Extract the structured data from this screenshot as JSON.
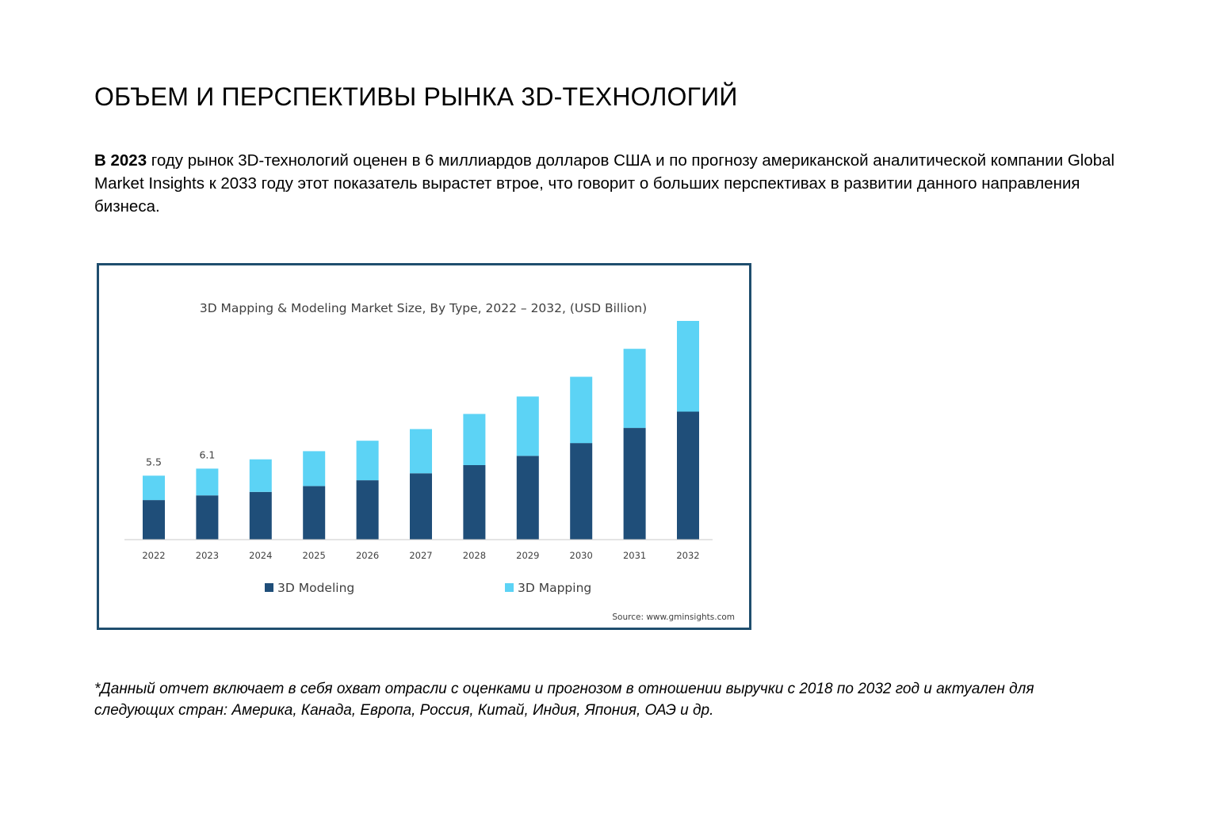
{
  "document": {
    "title": "ОБЪЕМ И ПЕРСПЕКТИВЫ РЫНКА 3D-ТЕХНОЛОГИЙ",
    "intro_bold": "В 2023",
    "intro_text": " году рынок 3D-технологий оценен в 6 миллиардов долларов США и по прогнозу американской аналитической компании Global Market Insights к 2033 году этот показатель вырастет втрое, что говорит о больших перспективах в развитии данного направления бизнеса.",
    "footnote": "*Данный отчет включает в себя охват отрасли с оценками и прогнозом в отношении выручки с 2018 по 2032 год и актуален для следующих стран: Америка, Канада, Европа, Россия, Китай, Индия, Япония, ОАЭ и др."
  },
  "chart_data": {
    "type": "bar",
    "stacked": true,
    "title": "3D Mapping & Modeling Market Size, By Type, 2022 – 2032, (USD Billion)",
    "categories": [
      "2022",
      "2023",
      "2024",
      "2025",
      "2026",
      "2027",
      "2028",
      "2029",
      "2030",
      "2031",
      "2032"
    ],
    "series": [
      {
        "name": "3D Modeling",
        "color": "#1f4e79",
        "values": [
          3.4,
          3.8,
          4.1,
          4.6,
          5.1,
          5.7,
          6.4,
          7.2,
          8.3,
          9.6,
          11.0
        ]
      },
      {
        "name": "3D Mapping",
        "color": "#5cd3f5",
        "values": [
          2.1,
          2.3,
          2.8,
          3.0,
          3.4,
          3.8,
          4.4,
          5.1,
          5.7,
          6.8,
          7.8
        ]
      }
    ],
    "data_labels": [
      {
        "category": "2022",
        "text": "5.5"
      },
      {
        "category": "2023",
        "text": "6.1"
      }
    ],
    "xlabel": "",
    "ylabel": "",
    "ylim": [
      0,
      18.8
    ],
    "grid": false,
    "y_axis_shown": false,
    "legend_position": "bottom",
    "source": "Source: www.gminsights.com"
  }
}
